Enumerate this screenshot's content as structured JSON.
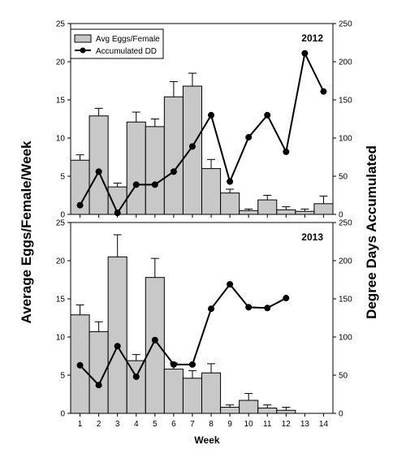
{
  "figure": {
    "ylabel_left": "Average Eggs/Female/Week",
    "ylabel_right": "Degree Days Accumulated",
    "xlabel": "Week"
  },
  "colors": {
    "bar_fill": "#c8c8c8",
    "bar_stroke": "#000000",
    "line": "#000000"
  },
  "chart_data": [
    {
      "type": "bar",
      "title": "2012",
      "categories": [
        1,
        2,
        3,
        4,
        5,
        6,
        7,
        8,
        9,
        10,
        11,
        12,
        13,
        14
      ],
      "ylim_left": [
        0,
        25
      ],
      "ylim_right": [
        0,
        250
      ],
      "yticks_left": [
        0,
        5,
        10,
        15,
        20,
        25
      ],
      "yticks_right": [
        0,
        50,
        100,
        150,
        200,
        250
      ],
      "legend": {
        "position": "top-left",
        "bar_label": "Avg Eggs/Female",
        "line_label": "Accumulated DD"
      },
      "series": [
        {
          "name": "Avg Eggs/Female",
          "axis": "left",
          "kind": "bar",
          "values": [
            7.1,
            12.9,
            3.6,
            12.1,
            11.5,
            15.4,
            16.8,
            6.0,
            2.8,
            0.5,
            1.9,
            0.6,
            0.4,
            1.4
          ],
          "error": [
            0.7,
            1.0,
            0.5,
            1.3,
            1.0,
            2.0,
            1.7,
            1.2,
            0.5,
            0.2,
            0.6,
            0.4,
            0.3,
            1.0
          ]
        },
        {
          "name": "Accumulated DD",
          "axis": "right",
          "kind": "line",
          "x": [
            1,
            2,
            3,
            4,
            5,
            6,
            7,
            8,
            9,
            10,
            11,
            12,
            13,
            14
          ],
          "values": [
            12,
            56,
            2,
            39,
            39,
            56,
            89,
            130,
            43,
            101,
            130,
            82,
            211,
            161
          ]
        }
      ]
    },
    {
      "type": "bar",
      "title": "2013",
      "categories": [
        1,
        2,
        3,
        4,
        5,
        6,
        7,
        8,
        9,
        10,
        11,
        12,
        13,
        14
      ],
      "ylim_left": [
        0,
        25
      ],
      "ylim_right": [
        0,
        250
      ],
      "yticks_left": [
        0,
        5,
        10,
        15,
        20,
        25
      ],
      "yticks_right": [
        0,
        50,
        100,
        150,
        200,
        250
      ],
      "series": [
        {
          "name": "Avg Eggs/Female",
          "axis": "left",
          "kind": "bar",
          "values": [
            12.9,
            10.7,
            20.5,
            6.9,
            17.8,
            5.8,
            4.6,
            5.3,
            0.8,
            1.7,
            0.7,
            0.4,
            0,
            0
          ],
          "error": [
            1.3,
            1.3,
            2.9,
            0.8,
            2.5,
            0.8,
            1.0,
            1.2,
            0.3,
            0.9,
            0.4,
            0.4,
            0,
            0
          ]
        },
        {
          "name": "Accumulated DD",
          "axis": "right",
          "kind": "line",
          "x": [
            1,
            2,
            3,
            4,
            5,
            6,
            7,
            8,
            9,
            10,
            11,
            12
          ],
          "values": [
            63,
            37,
            88,
            48,
            96,
            64,
            64,
            137,
            169,
            139,
            138,
            151
          ]
        }
      ]
    }
  ]
}
